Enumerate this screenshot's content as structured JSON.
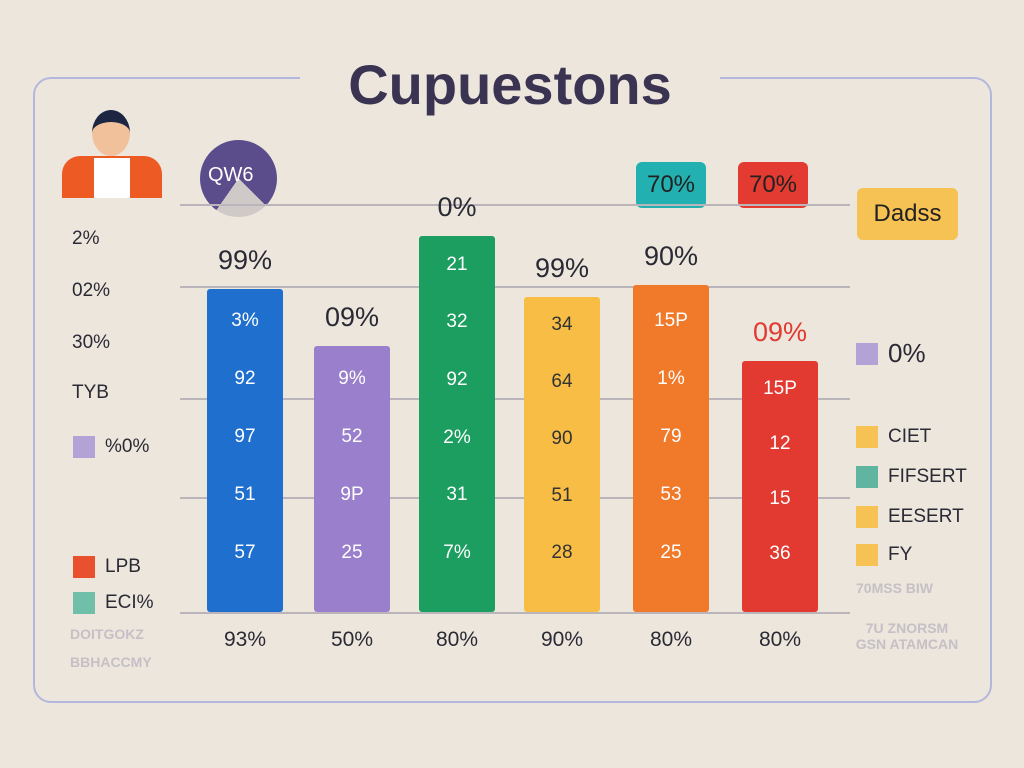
{
  "chart_data": {
    "type": "bar",
    "title": "Cupuestons",
    "categories": [
      "Blue",
      "Purple",
      "Green",
      "Yellow",
      "Orange",
      "Red"
    ],
    "values": [
      85,
      70,
      99,
      83,
      86,
      66
    ],
    "ylim": [
      0,
      100
    ],
    "colors": [
      "#1f6fce",
      "#9a7fcc",
      "#1d9e61",
      "#f7bd45",
      "#f07a2a",
      "#e23a31"
    ],
    "top_labels": [
      "99%",
      "09%",
      "0%",
      "99%",
      "90%",
      "09%"
    ],
    "bottom_labels": [
      "93%",
      "50%",
      "80%",
      "90%",
      "80%",
      "80%"
    ],
    "inner_labels": [
      [
        "3%",
        "92",
        "97",
        "51",
        "57"
      ],
      [
        "9%",
        "52",
        "9P",
        "25"
      ],
      [
        "21",
        "32",
        "92",
        "2%",
        "31",
        "7%"
      ],
      [
        "34",
        "64",
        "90",
        "51",
        "28"
      ],
      [
        "15P",
        "1%",
        "79",
        "53",
        "25"
      ],
      [
        "15P",
        "12",
        "15",
        "36"
      ]
    ],
    "grid": true
  },
  "header": {
    "pie_label": "QW6",
    "badge_teal": "70%",
    "badge_red": "70%",
    "badge_yellow": "Dadss"
  },
  "left": {
    "labels": [
      "2%",
      "02%",
      "30%",
      "TYB"
    ],
    "legend_pct": "%0%",
    "legend": [
      "LPB",
      "ECI%"
    ],
    "faint": [
      "DOITGOKZ",
      "BBHACCMY"
    ]
  },
  "right": {
    "legend_pct": "0%",
    "legend": [
      "CIET",
      "FIFSERT",
      "EESERT",
      "FY"
    ],
    "faint": [
      "70MSS BIW",
      "7U ZNORSM GSN ATAMCAN"
    ]
  }
}
